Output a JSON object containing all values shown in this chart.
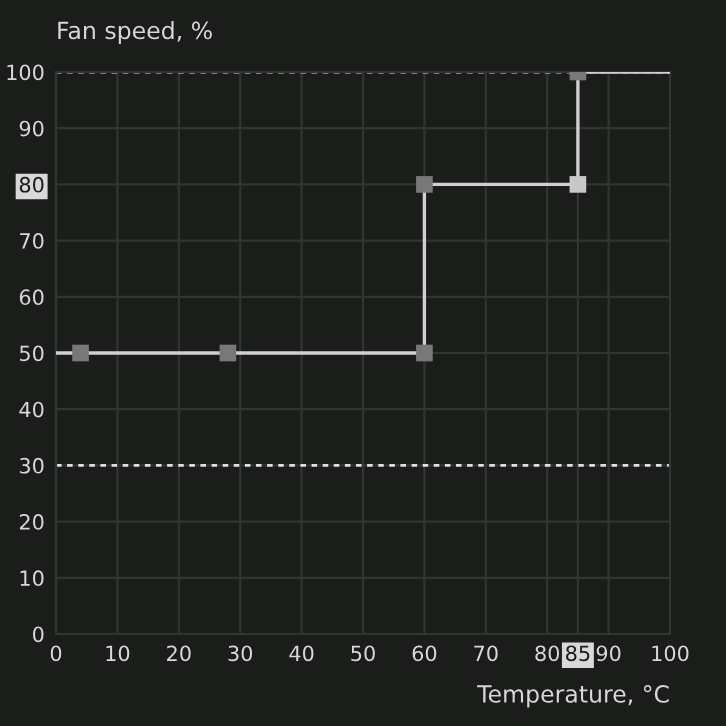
{
  "chart_data": {
    "type": "line",
    "xlabel": "Temperature, °C",
    "ylabel": "Fan speed, %",
    "series": [
      {
        "color": "#d0d0d0",
        "x": [
          0,
          4,
          28,
          60,
          60,
          85,
          85,
          100
        ],
        "values": [
          50,
          50,
          50,
          50,
          80,
          80,
          100,
          100
        ],
        "marker": "none"
      },
      {
        "type": "scatter",
        "color": "#787878",
        "x": [
          4,
          28,
          60,
          60,
          85,
          85
        ],
        "values": [
          50,
          50,
          50,
          80,
          80,
          100
        ],
        "colors": [
          "#787878",
          "#787878",
          "#787878",
          "#787878",
          "#c8c8c8",
          "#787878"
        ],
        "marker": "square"
      }
    ],
    "xlim": [
      0,
      100
    ],
    "ylim": [
      0,
      100
    ],
    "xticks": [
      0,
      10,
      20,
      30,
      40,
      50,
      60,
      70,
      80,
      85,
      90,
      100
    ],
    "yticks": [
      0,
      10,
      20,
      30,
      40,
      50,
      60,
      70,
      80,
      90,
      100
    ],
    "ref_lines": [
      {
        "axis": "y",
        "value": 100,
        "color": "#e0e0e0",
        "line_style": "dashed"
      },
      {
        "axis": "y",
        "value": 30,
        "color": "#e0e0e0",
        "line_style": "dashed"
      }
    ],
    "grid": true
  }
}
